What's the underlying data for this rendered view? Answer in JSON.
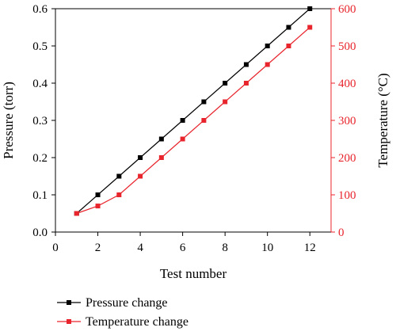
{
  "chart_data": {
    "type": "line",
    "xlabel": "Test number",
    "ylabel_left": "Pressure (torr)",
    "ylabel_right": "Temperature (°C)",
    "xlim": [
      0,
      13
    ],
    "ylim_left": [
      0,
      0.6
    ],
    "ylim_right": [
      0,
      600
    ],
    "x_ticks": [
      0,
      2,
      4,
      6,
      8,
      10,
      12
    ],
    "y_ticks_left": [
      0.0,
      0.1,
      0.2,
      0.3,
      0.4,
      0.5,
      0.6
    ],
    "y_tick_labels_left": [
      "0.0",
      "0.1",
      "0.2",
      "0.3",
      "0.4",
      "0.5",
      "0.6"
    ],
    "y_ticks_right": [
      0,
      100,
      200,
      300,
      400,
      500,
      600
    ],
    "grid": false,
    "legend_position": "bottom-center",
    "x": [
      1,
      2,
      3,
      4,
      5,
      6,
      7,
      8,
      9,
      10,
      11,
      12
    ],
    "series": [
      {
        "name": "Pressure change",
        "axis": "left",
        "color": "#000000",
        "marker": "square",
        "values": [
          0.05,
          0.1,
          0.15,
          0.2,
          0.25,
          0.3,
          0.35,
          0.4,
          0.45,
          0.5,
          0.55,
          0.6
        ]
      },
      {
        "name": "Temperature change",
        "axis": "right",
        "color": "#e8242c",
        "marker": "square",
        "values": [
          50,
          70,
          100,
          150,
          200,
          250,
          300,
          350,
          400,
          450,
          500,
          550
        ]
      }
    ],
    "right_axis_color": "#e8242c"
  }
}
